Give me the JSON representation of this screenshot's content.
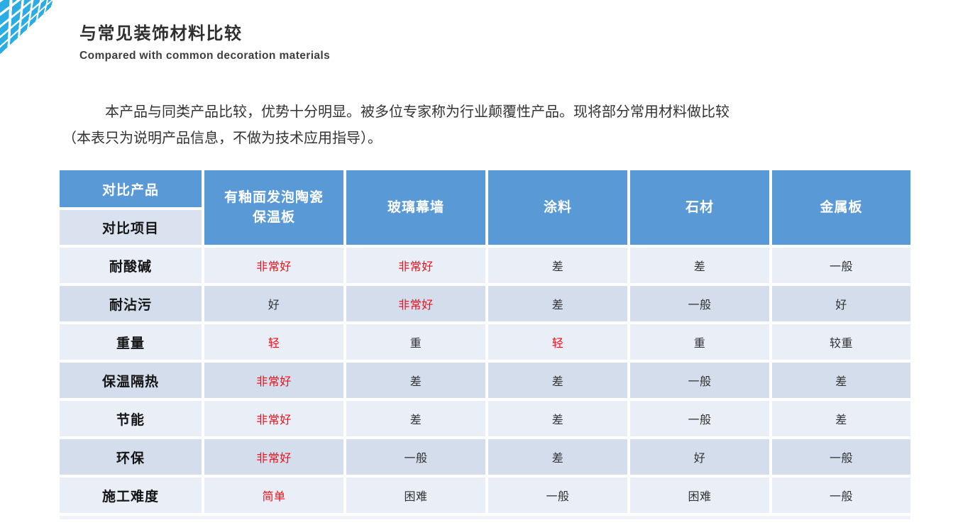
{
  "colors": {
    "header_bg": "#5999d6",
    "corner_bottom_bg": "#dbe2ef",
    "row_light": "#e9eef7",
    "row_dark": "#d4ddec",
    "red": "#fa0a14",
    "logo": "#2aace4",
    "title": "#2f2f2f",
    "text": "#333333"
  },
  "header": {
    "title": "与常见装饰材料比较",
    "subtitle": "Compared with common decoration materials",
    "logo_icon": "perspective-tile-grid"
  },
  "intro": {
    "line1": "本产品与同类产品比较，优势十分明显。被多位专家称为行业颠覆性产品。现将部分常用材料做比较",
    "line2": "（本表只为说明产品信息，不做为技术应用指导）。"
  },
  "table": {
    "corner": {
      "top": "对比产品",
      "bottom": "对比项目"
    },
    "columns": [
      "有釉面发泡陶瓷\n保温板",
      "玻璃幕墙",
      "涂料",
      "石材",
      "金属板"
    ],
    "rows": [
      {
        "label": "耐酸碱",
        "values": [
          {
            "text": "非常好",
            "red": true
          },
          {
            "text": "非常好",
            "red": true
          },
          {
            "text": "差"
          },
          {
            "text": "差"
          },
          {
            "text": "一般"
          }
        ]
      },
      {
        "label": "耐沾污",
        "values": [
          {
            "text": "好"
          },
          {
            "text": "非常好",
            "red": true
          },
          {
            "text": "差"
          },
          {
            "text": "一般"
          },
          {
            "text": "好"
          }
        ]
      },
      {
        "label": "重量",
        "values": [
          {
            "text": "轻",
            "red": true
          },
          {
            "text": "重"
          },
          {
            "text": "轻",
            "red": true
          },
          {
            "text": "重"
          },
          {
            "text": "较重"
          }
        ]
      },
      {
        "label": "保温隔热",
        "values": [
          {
            "text": "非常好",
            "red": true
          },
          {
            "text": "差"
          },
          {
            "text": "差"
          },
          {
            "text": "一般"
          },
          {
            "text": "差"
          }
        ]
      },
      {
        "label": "节能",
        "values": [
          {
            "text": "非常好",
            "red": true
          },
          {
            "text": "差"
          },
          {
            "text": "差"
          },
          {
            "text": "一般"
          },
          {
            "text": "差"
          }
        ]
      },
      {
        "label": "环保",
        "values": [
          {
            "text": "非常好",
            "red": true
          },
          {
            "text": "一般"
          },
          {
            "text": "差"
          },
          {
            "text": "好"
          },
          {
            "text": "一般"
          }
        ]
      },
      {
        "label": "施工难度",
        "values": [
          {
            "text": "简单",
            "red": true
          },
          {
            "text": "困难"
          },
          {
            "text": "一般"
          },
          {
            "text": "困难"
          },
          {
            "text": "一般"
          }
        ]
      }
    ]
  }
}
